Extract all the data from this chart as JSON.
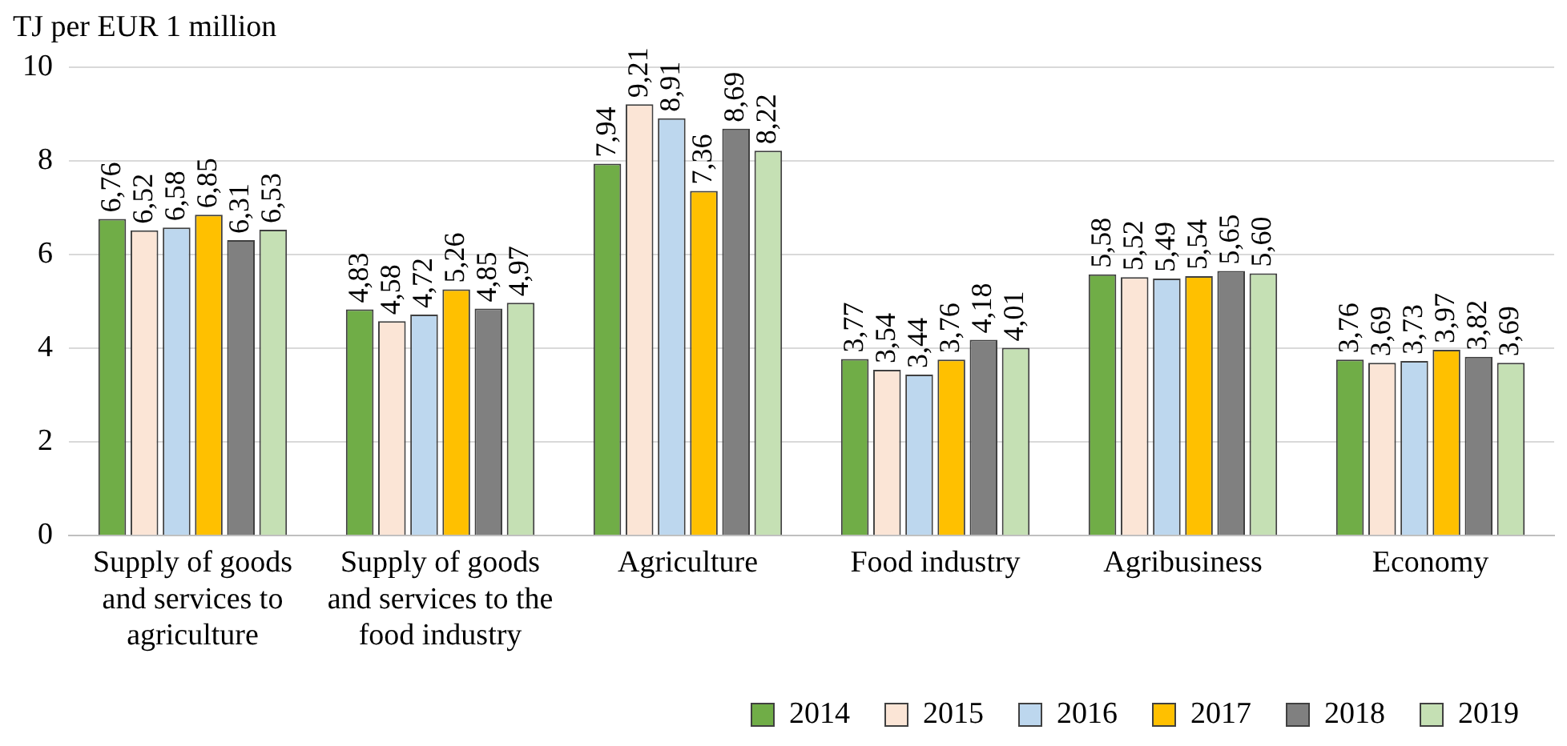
{
  "chart_data": {
    "type": "bar",
    "ylabel": "TJ per EUR 1 million",
    "categories": [
      "Supply of goods and services to agriculture",
      "Supply of goods and services to the food industry",
      "Agriculture",
      "Food industry",
      "Agribusiness",
      "Economy"
    ],
    "series": [
      {
        "name": "2014",
        "color": "#70ad47",
        "values": [
          6.76,
          4.83,
          7.94,
          3.77,
          5.58,
          3.76
        ],
        "value_labels": [
          "6,76",
          "4,83",
          "7,94",
          "3,77",
          "5,58",
          "3,76"
        ]
      },
      {
        "name": "2015",
        "color": "#fbe5d6",
        "values": [
          6.52,
          4.58,
          9.21,
          3.54,
          5.52,
          3.69
        ],
        "value_labels": [
          "6,52",
          "4,58",
          "9,21",
          "3,54",
          "5,52",
          "3,69"
        ]
      },
      {
        "name": "2016",
        "color": "#bdd7ee",
        "values": [
          6.58,
          4.72,
          8.91,
          3.44,
          5.49,
          3.73
        ],
        "value_labels": [
          "6,58",
          "4,72",
          "8,91",
          "3,44",
          "5,49",
          "3,73"
        ]
      },
      {
        "name": "2017",
        "color": "#ffc000",
        "values": [
          6.85,
          5.26,
          7.36,
          3.76,
          5.54,
          3.97
        ],
        "value_labels": [
          "6,85",
          "5,26",
          "7,36",
          "3,76",
          "5,54",
          "3,97"
        ]
      },
      {
        "name": "2018",
        "color": "#808080",
        "values": [
          6.31,
          4.85,
          8.69,
          4.18,
          5.65,
          3.82
        ],
        "value_labels": [
          "6,31",
          "4,85",
          "8,69",
          "4,18",
          "5,65",
          "3,82"
        ]
      },
      {
        "name": "2019",
        "color": "#c5e0b4",
        "values": [
          6.53,
          4.97,
          8.22,
          4.01,
          5.6,
          3.69
        ],
        "value_labels": [
          "6,53",
          "4,97",
          "8,22",
          "4,01",
          "5,60",
          "3,69"
        ]
      }
    ],
    "ylim": [
      0,
      10
    ],
    "yticks": [
      0,
      2,
      4,
      6,
      8,
      10
    ],
    "grid": "y",
    "legend": "bottom right"
  }
}
